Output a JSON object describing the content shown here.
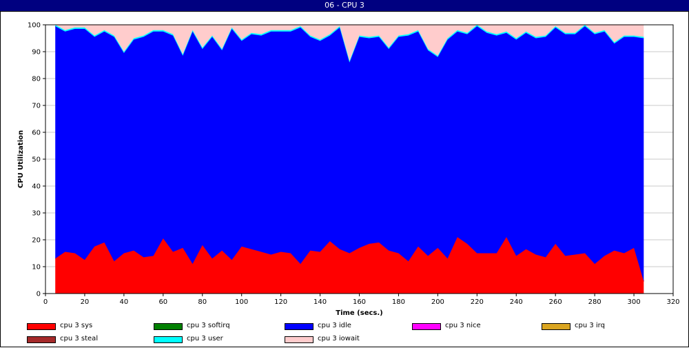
{
  "window": {
    "title": "06 - CPU 3"
  },
  "colors": {
    "titlebar": "#000080",
    "grid": "#c8c8c8"
  },
  "chart_data": {
    "type": "area",
    "stacked": true,
    "xlabel": "Time (secs.)",
    "ylabel": "CPU Utilization",
    "xlim": [
      0,
      320
    ],
    "ylim": [
      0,
      100
    ],
    "xticks": [
      0,
      20,
      40,
      60,
      80,
      100,
      120,
      140,
      160,
      180,
      200,
      220,
      240,
      260,
      280,
      300,
      320
    ],
    "yticks": [
      0,
      10,
      20,
      30,
      40,
      50,
      60,
      70,
      80,
      90,
      100
    ],
    "grid": "horizontal",
    "legend_position": "bottom",
    "x": [
      5,
      10,
      15,
      20,
      25,
      30,
      35,
      40,
      45,
      50,
      55,
      60,
      65,
      70,
      75,
      80,
      85,
      90,
      95,
      100,
      105,
      110,
      115,
      120,
      125,
      130,
      135,
      140,
      145,
      150,
      155,
      160,
      165,
      170,
      175,
      180,
      185,
      190,
      195,
      200,
      205,
      210,
      215,
      220,
      225,
      230,
      235,
      240,
      245,
      250,
      255,
      260,
      265,
      270,
      275,
      280,
      285,
      290,
      295,
      300,
      305
    ],
    "series": [
      {
        "name": "cpu 3 sys",
        "color": "#ff0000",
        "values": [
          13,
          15.5,
          15,
          12.5,
          17.5,
          19,
          12,
          15,
          16,
          13.5,
          14,
          20.5,
          15.5,
          17,
          11,
          18,
          13,
          16,
          12.5,
          17.5,
          16.5,
          15.5,
          14.5,
          15.5,
          15,
          11,
          16,
          15.5,
          19.5,
          16.5,
          15,
          17,
          18.5,
          19,
          16,
          15,
          12,
          17.5,
          14,
          17,
          13,
          21,
          18.5,
          15,
          15,
          15,
          21,
          14,
          16.5,
          14.5,
          13.5,
          18.5,
          14,
          14.5,
          15,
          11,
          14,
          16,
          15,
          17,
          4.5
        ]
      },
      {
        "name": "cpu 3 softirq",
        "color": "#008000",
        "values": [
          0,
          0,
          0,
          0,
          0,
          0,
          0,
          0,
          0,
          0,
          0,
          0,
          0,
          0,
          0,
          0,
          0,
          0,
          0,
          0,
          0,
          0,
          0,
          0,
          0,
          0,
          0,
          0,
          0,
          0,
          0,
          0,
          0,
          0,
          0,
          0,
          0,
          0,
          0,
          0,
          0,
          0,
          0,
          0,
          0,
          0,
          0,
          0,
          0,
          0,
          0,
          0,
          0,
          0,
          0,
          0,
          0,
          0,
          0,
          0,
          0
        ]
      },
      {
        "name": "cpu 3 idle",
        "color": "#0000ff",
        "values": [
          86.5,
          82,
          83.5,
          86,
          78,
          78.5,
          83.5,
          74.5,
          78.5,
          82,
          83.5,
          77,
          80.5,
          71.5,
          86.5,
          73,
          82.5,
          74.5,
          86,
          76.5,
          80,
          80.5,
          83,
          82,
          82.5,
          88,
          79.5,
          78.5,
          76.5,
          82.5,
          71,
          78.5,
          76.5,
          76.5,
          75,
          80.5,
          84,
          80,
          76.5,
          71,
          81.5,
          76.5,
          78,
          84.5,
          82,
          81,
          76,
          80.5,
          80.5,
          80.5,
          82,
          80.5,
          82.5,
          82,
          84.5,
          85.5,
          83.5,
          77,
          80.5,
          78.5,
          90.5
        ]
      },
      {
        "name": "cpu 3 nice",
        "color": "#ff00ff",
        "values": [
          0,
          0,
          0,
          0,
          0,
          0,
          0,
          0,
          0,
          0,
          0,
          0,
          0,
          0,
          0,
          0,
          0,
          0,
          0,
          0,
          0,
          0,
          0,
          0,
          0,
          0,
          0,
          0,
          0,
          0,
          0,
          0,
          0,
          0,
          0,
          0,
          0,
          0,
          0,
          0,
          0,
          0,
          0,
          0,
          0,
          0,
          0,
          0,
          0,
          0,
          0,
          0,
          0,
          0,
          0,
          0,
          0,
          0,
          0,
          0,
          0
        ]
      },
      {
        "name": "cpu 3 irq",
        "color": "#daa520",
        "values": [
          0,
          0,
          0,
          0,
          0,
          0,
          0,
          0,
          0,
          0,
          0,
          0,
          0,
          0,
          0,
          0,
          0,
          0,
          0,
          0,
          0,
          0,
          0,
          0,
          0,
          0,
          0,
          0,
          0,
          0,
          0,
          0,
          0,
          0,
          0,
          0,
          0,
          0,
          0,
          0,
          0,
          0,
          0,
          0,
          0,
          0,
          0,
          0,
          0,
          0,
          0,
          0,
          0,
          0,
          0,
          0,
          0,
          0,
          0,
          0,
          0
        ]
      },
      {
        "name": "cpu 3 steal",
        "color": "#a52a2a",
        "values": [
          0,
          0,
          0,
          0,
          0,
          0,
          0,
          0,
          0,
          0,
          0,
          0,
          0,
          0,
          0,
          0,
          0,
          0,
          0,
          0,
          0,
          0,
          0,
          0,
          0,
          0,
          0,
          0,
          0,
          0,
          0,
          0,
          0,
          0,
          0,
          0,
          0,
          0,
          0,
          0,
          0,
          0,
          0,
          0,
          0,
          0,
          0,
          0,
          0,
          0,
          0,
          0,
          0,
          0,
          0,
          0,
          0,
          0,
          0,
          0,
          0
        ]
      },
      {
        "name": "cpu 3 user",
        "color": "#00ffff",
        "values": [
          0.5,
          0.5,
          0.5,
          0.5,
          0.5,
          0.5,
          0.5,
          0.5,
          0.5,
          0.5,
          0.5,
          0.5,
          0.5,
          0.5,
          0.5,
          0.5,
          0.5,
          0.5,
          0.5,
          0.5,
          0.5,
          0.5,
          0.5,
          0.5,
          0.5,
          0.5,
          0.5,
          0.5,
          0.5,
          0.5,
          0.5,
          0.5,
          0.5,
          0.5,
          0.5,
          0.5,
          0.5,
          0.5,
          0.5,
          0.5,
          0.5,
          0.5,
          0.5,
          0.5,
          0.5,
          0.5,
          0.5,
          0.5,
          0.5,
          0.5,
          0.5,
          0.5,
          0.5,
          0.5,
          0.5,
          0.5,
          0.5,
          0.5,
          0.5,
          0.5,
          0.5
        ]
      },
      {
        "name": "cpu 3 iowait",
        "color": "#ffcccc",
        "values": [
          0,
          2,
          1,
          1,
          4,
          2,
          4,
          10,
          5,
          4,
          2,
          2,
          3.5,
          11,
          2,
          8.5,
          4,
          9,
          1,
          5.5,
          3,
          3.5,
          2,
          2,
          2,
          0.5,
          4,
          5.5,
          3.5,
          0.5,
          13.5,
          4,
          4.5,
          4,
          8.5,
          4,
          3.5,
          2,
          9,
          11.5,
          5,
          2,
          3,
          0,
          2.5,
          3.5,
          2.5,
          5,
          2.5,
          4.5,
          4,
          0.5,
          3,
          3,
          0,
          3,
          2,
          6.5,
          4,
          4,
          4.5
        ]
      }
    ]
  }
}
